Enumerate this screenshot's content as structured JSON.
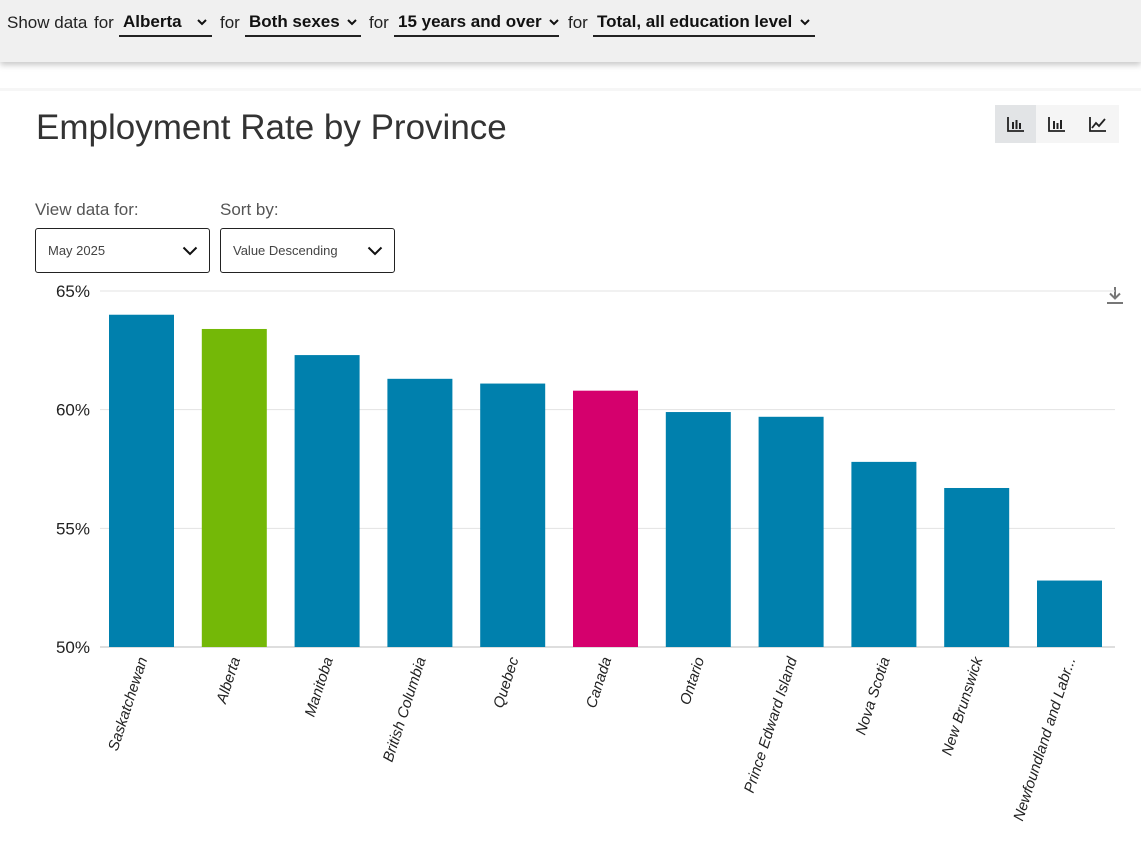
{
  "filters": {
    "show_data_label": "Show data",
    "for_word": "for",
    "geography": "Alberta",
    "sex": "Both sexes",
    "age": "15 years and over",
    "education": "Total, all education levels"
  },
  "title": "Employment Rate by Province",
  "chart_toggle": {
    "options": [
      "bar-chart-icon",
      "column-chart-icon",
      "line-chart-icon"
    ],
    "active": "bar-chart-icon"
  },
  "controls": {
    "view_data_label": "View data for:",
    "view_data_value": "May 2025",
    "sort_label": "Sort by:",
    "sort_value": "Value Descending"
  },
  "colors": {
    "default_bar": "#0080ad",
    "selected_province": "#74b807",
    "canada": "#d5006d"
  },
  "chart_data": {
    "type": "bar",
    "categories": [
      "Saskatchewan",
      "Alberta",
      "Manitoba",
      "British Columbia",
      "Quebec",
      "Canada",
      "Ontario",
      "Prince Edward Island",
      "Nova Scotia",
      "New Brunswick",
      "Newfoundland and Labr..."
    ],
    "values": [
      64.0,
      63.4,
      62.3,
      61.3,
      61.1,
      60.8,
      59.9,
      59.7,
      57.8,
      56.7,
      52.8
    ],
    "highlight": {
      "Alberta": "#74b807",
      "Canada": "#d5006d"
    },
    "ylim": [
      50,
      65
    ],
    "yticks": [
      "50%",
      "55%",
      "60%",
      "65%"
    ],
    "grid": true,
    "title": "",
    "xlabel": "",
    "ylabel": ""
  }
}
